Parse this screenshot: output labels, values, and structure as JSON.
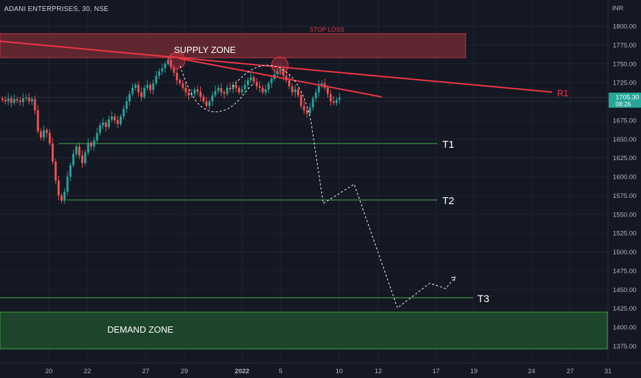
{
  "header": {
    "symbol": "ADANI ENTERPRISES, 30, NSE"
  },
  "price_axis": {
    "currency": "INR",
    "last_price": "1705.30",
    "countdown": "08:26",
    "tick_labels": [
      "1800.00",
      "1775.00",
      "1750.00",
      "1725.00",
      "1700.00",
      "1675.00",
      "1650.00",
      "1625.00",
      "1600.00",
      "1575.00",
      "1550.00",
      "1525.00",
      "1500.00",
      "1475.00",
      "1450.00",
      "1425.00",
      "1400.00",
      "1375.00"
    ]
  },
  "annotations": {
    "stop_loss": "STOP LOSS",
    "supply_zone": "SUPPLY ZONE",
    "demand_zone": "DEMAND ZONE",
    "r1": "R1",
    "t1": "T1",
    "t2": "T2",
    "t3": "T3"
  },
  "colors": {
    "background": "#141823",
    "up": "#26a69a",
    "down": "#ef5350",
    "supply_fill": "#6b2a31",
    "demand_fill": "#1e4a2c",
    "resistance": "#f23645",
    "target_line": "#4caf50",
    "text": "#d1d4dc"
  },
  "chart_data": {
    "type": "candlestick",
    "title": "ADANI ENTERPRISES, 30, NSE",
    "x_ticks": [
      "20",
      "22",
      "27",
      "29",
      "2022",
      "5",
      "10",
      "12",
      "17",
      "19",
      "24",
      "27",
      "31"
    ],
    "ylim": [
      1360,
      1822
    ],
    "y_ticks": [
      1800,
      1775,
      1750,
      1725,
      1700,
      1675,
      1650,
      1625,
      1600,
      1575,
      1550,
      1525,
      1500,
      1475,
      1450,
      1425,
      1400,
      1375
    ],
    "last_price": 1705.3,
    "levels": [
      {
        "name": "T1",
        "price": 1644
      },
      {
        "name": "T2",
        "price": 1569
      },
      {
        "name": "T3",
        "price": 1439
      }
    ],
    "zones": [
      {
        "name": "SUPPLY ZONE",
        "price_low": 1758,
        "price_high": 1790
      },
      {
        "name": "DEMAND ZONE",
        "price_low": 1371,
        "price_high": 1420
      }
    ],
    "stop_loss": 1790,
    "price_path_closes": [
      1702,
      1700,
      1704,
      1698,
      1703,
      1701,
      1699,
      1704,
      1705,
      1700,
      1703,
      1688,
      1660,
      1652,
      1662,
      1658,
      1644,
      1620,
      1595,
      1575,
      1568,
      1580,
      1600,
      1615,
      1630,
      1640,
      1628,
      1618,
      1632,
      1645,
      1640,
      1648,
      1658,
      1668,
      1672,
      1666,
      1676,
      1680,
      1675,
      1670,
      1680,
      1690,
      1700,
      1710,
      1718,
      1722,
      1712,
      1706,
      1718,
      1722,
      1715,
      1724,
      1734,
      1740,
      1744,
      1750,
      1755,
      1745,
      1738,
      1728,
      1724,
      1718,
      1712,
      1708,
      1710,
      1716,
      1713,
      1706,
      1700,
      1694,
      1700,
      1708,
      1714,
      1718,
      1712,
      1710,
      1718,
      1716,
      1722,
      1718,
      1712,
      1716,
      1722,
      1728,
      1732,
      1726,
      1720,
      1718,
      1712,
      1716,
      1724,
      1730,
      1736,
      1740,
      1742,
      1734,
      1728,
      1720,
      1712,
      1716,
      1708,
      1694,
      1688,
      1684,
      1692,
      1704,
      1712,
      1720,
      1724,
      1718,
      1710,
      1700,
      1698,
      1702,
      1705
    ]
  }
}
